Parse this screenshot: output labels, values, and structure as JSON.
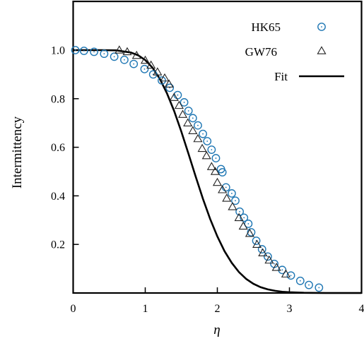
{
  "colors": {
    "hk65": "#1f77b4",
    "gw76": "#222222",
    "fit": "#000000",
    "axes": "#000000"
  },
  "chart_data": {
    "type": "scatter",
    "xlabel": "η",
    "ylabel": "Intermittency",
    "xlim": [
      0,
      4
    ],
    "ylim": [
      0,
      1.15
    ],
    "x_ticks": [
      0,
      1,
      2,
      3,
      4
    ],
    "x_tick_labels": [
      "0",
      "1",
      "2",
      "3",
      "4"
    ],
    "y_ticks": [
      0.2,
      0.4,
      0.6,
      0.8,
      1.0
    ],
    "y_tick_labels": [
      "0.2",
      "0.4",
      "0.6",
      "0.8",
      "1.0"
    ],
    "grid": false,
    "legend_position": "top-right",
    "series": [
      {
        "name": "HK65",
        "kind": "scatter",
        "marker": "circle",
        "points": [
          [
            0.03,
            1.0
          ],
          [
            0.15,
            0.997
          ],
          [
            0.29,
            0.993
          ],
          [
            0.43,
            0.985
          ],
          [
            0.57,
            0.973
          ],
          [
            0.71,
            0.96
          ],
          [
            0.84,
            0.943
          ],
          [
            0.99,
            0.922
          ],
          [
            1.11,
            0.9
          ],
          [
            1.23,
            0.875
          ],
          [
            1.34,
            0.845
          ],
          [
            1.45,
            0.815
          ],
          [
            1.54,
            0.785
          ],
          [
            1.6,
            0.75
          ],
          [
            1.66,
            0.72
          ],
          [
            1.73,
            0.69
          ],
          [
            1.8,
            0.655
          ],
          [
            1.86,
            0.625
          ],
          [
            1.92,
            0.59
          ],
          [
            1.98,
            0.555
          ],
          [
            2.05,
            0.51
          ],
          [
            2.07,
            0.497
          ],
          [
            2.12,
            0.435
          ],
          [
            2.2,
            0.41
          ],
          [
            2.25,
            0.38
          ],
          [
            2.31,
            0.335
          ],
          [
            2.37,
            0.31
          ],
          [
            2.43,
            0.285
          ],
          [
            2.47,
            0.25
          ],
          [
            2.54,
            0.215
          ],
          [
            2.62,
            0.18
          ],
          [
            2.7,
            0.15
          ],
          [
            2.79,
            0.12
          ],
          [
            2.9,
            0.095
          ],
          [
            3.02,
            0.072
          ],
          [
            3.15,
            0.05
          ],
          [
            3.27,
            0.033
          ],
          [
            3.41,
            0.022
          ]
        ]
      },
      {
        "name": "GW76",
        "kind": "scatter",
        "marker": "triangle",
        "points": [
          [
            0.64,
            1.0
          ],
          [
            0.75,
            0.993
          ],
          [
            0.88,
            0.978
          ],
          [
            1.0,
            0.958
          ],
          [
            1.08,
            0.938
          ],
          [
            1.17,
            0.91
          ],
          [
            1.27,
            0.885
          ],
          [
            1.33,
            0.86
          ],
          [
            1.4,
            0.805
          ],
          [
            1.47,
            0.772
          ],
          [
            1.52,
            0.735
          ],
          [
            1.59,
            0.7
          ],
          [
            1.66,
            0.668
          ],
          [
            1.73,
            0.635
          ],
          [
            1.79,
            0.595
          ],
          [
            1.85,
            0.565
          ],
          [
            1.92,
            0.52
          ],
          [
            1.97,
            0.5
          ],
          [
            2.0,
            0.455
          ],
          [
            2.07,
            0.425
          ],
          [
            2.13,
            0.39
          ],
          [
            2.21,
            0.355
          ],
          [
            2.3,
            0.31
          ],
          [
            2.36,
            0.275
          ],
          [
            2.45,
            0.245
          ],
          [
            2.55,
            0.2
          ],
          [
            2.63,
            0.165
          ],
          [
            2.72,
            0.135
          ],
          [
            2.82,
            0.105
          ],
          [
            2.95,
            0.078
          ]
        ]
      },
      {
        "name": "Fit",
        "kind": "line",
        "points": [
          [
            0.0,
            1.0
          ],
          [
            0.2,
            1.0
          ],
          [
            0.4,
            1.0
          ],
          [
            0.6,
            0.999
          ],
          [
            0.8,
            0.99
          ],
          [
            0.9,
            0.979
          ],
          [
            1.0,
            0.959
          ],
          [
            1.1,
            0.928
          ],
          [
            1.2,
            0.883
          ],
          [
            1.3,
            0.823
          ],
          [
            1.4,
            0.75
          ],
          [
            1.5,
            0.665
          ],
          [
            1.6,
            0.573
          ],
          [
            1.7,
            0.479
          ],
          [
            1.8,
            0.388
          ],
          [
            1.9,
            0.305
          ],
          [
            2.0,
            0.233
          ],
          [
            2.1,
            0.172
          ],
          [
            2.2,
            0.124
          ],
          [
            2.3,
            0.086
          ],
          [
            2.4,
            0.058
          ],
          [
            2.5,
            0.038
          ],
          [
            2.6,
            0.024
          ],
          [
            2.7,
            0.015
          ],
          [
            2.8,
            0.009
          ],
          [
            2.9,
            0.005
          ],
          [
            3.0,
            0.003
          ],
          [
            3.2,
            0.001
          ],
          [
            3.5,
            0.0
          ],
          [
            4.0,
            0.0
          ]
        ]
      }
    ]
  }
}
